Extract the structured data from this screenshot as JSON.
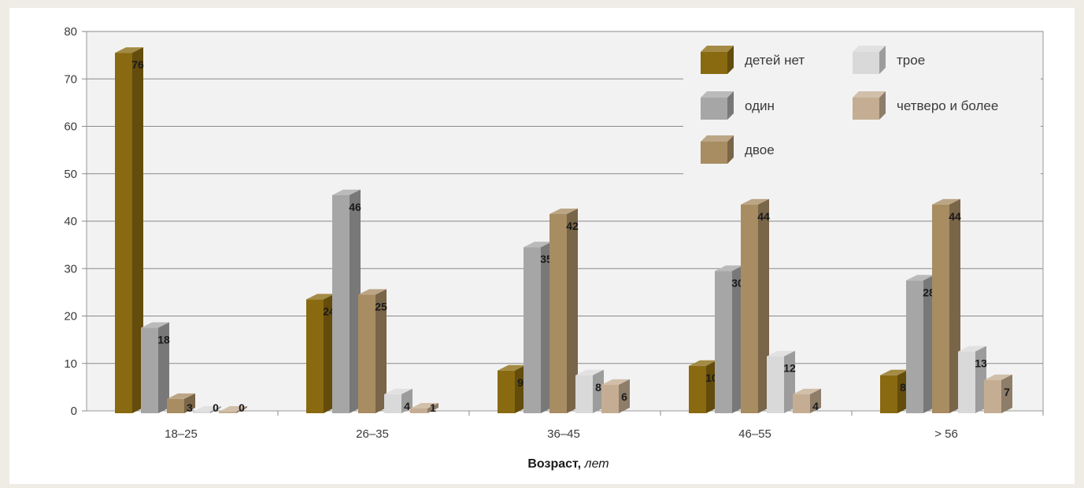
{
  "chart_data": {
    "type": "bar",
    "categories": [
      "18–25",
      "26–35",
      "36–45",
      "46–55",
      "> 56"
    ],
    "series": [
      {
        "name": "детей нет",
        "color": "#8a6a10",
        "values": [
          76,
          24,
          9,
          10,
          8
        ]
      },
      {
        "name": "один",
        "color": "#a6a6a6",
        "values": [
          18,
          46,
          35,
          30,
          28
        ]
      },
      {
        "name": "двое",
        "color": "#a88c62",
        "values": [
          3,
          25,
          42,
          44,
          44
        ]
      },
      {
        "name": "трое",
        "color": "#d9d9d9",
        "values": [
          0,
          4,
          8,
          12,
          13
        ]
      },
      {
        "name": "четверо и более",
        "color": "#c4ad92",
        "values": [
          0,
          1,
          6,
          4,
          7
        ]
      }
    ],
    "ylim": [
      0,
      80
    ],
    "yticks": [
      0,
      10,
      20,
      30,
      40,
      50,
      60,
      70,
      80
    ],
    "xlabel_bold": "Возраст,",
    "xlabel_italic": "лет",
    "grid": true,
    "legend_position": "top-right"
  }
}
